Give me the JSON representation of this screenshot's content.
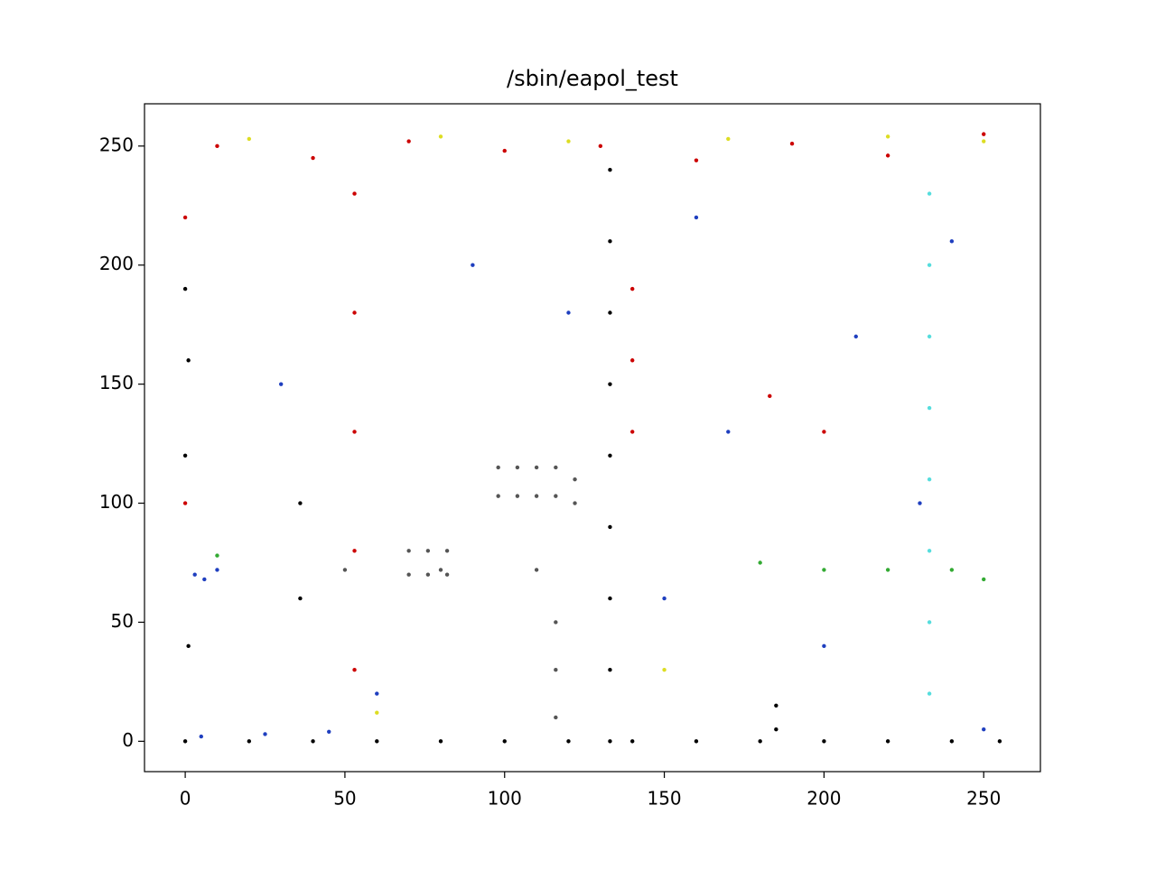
{
  "chart_data": {
    "type": "scatter",
    "title": "/sbin/eapol_test",
    "xlim": [
      -12.75,
      267.75
    ],
    "ylim": [
      -12.75,
      267.75
    ],
    "xticks": [
      0,
      50,
      100,
      150,
      200,
      250
    ],
    "yticks": [
      0,
      50,
      100,
      150,
      200,
      250
    ],
    "series": [
      {
        "color": "#000000",
        "x": [
          133,
          133,
          133,
          133,
          133,
          133,
          133,
          133,
          133,
          0,
          20,
          40,
          60,
          80,
          100,
          120,
          140,
          160,
          180,
          200,
          220,
          240,
          255,
          185,
          185,
          0,
          0,
          36,
          36,
          1,
          1
        ],
        "values": [
          0,
          30,
          60,
          90,
          120,
          150,
          180,
          210,
          240,
          0,
          0,
          0,
          0,
          0,
          0,
          0,
          0,
          0,
          0,
          0,
          0,
          0,
          0,
          5,
          15,
          190,
          120,
          100,
          60,
          40,
          160
        ]
      },
      {
        "color": "#555555",
        "x": [
          98,
          104,
          110,
          116,
          122,
          98,
          104,
          110,
          116,
          122,
          70,
          76,
          82,
          70,
          76,
          82,
          116,
          116,
          116,
          50,
          80,
          110
        ],
        "values": [
          115,
          115,
          115,
          115,
          110,
          103,
          103,
          103,
          103,
          100,
          80,
          80,
          80,
          70,
          70,
          70,
          50,
          30,
          10,
          72,
          72,
          72
        ]
      },
      {
        "color": "#cc0000",
        "x": [
          10,
          40,
          70,
          100,
          130,
          160,
          190,
          220,
          250,
          53,
          53,
          53,
          53,
          53,
          140,
          140,
          140,
          0,
          0,
          183,
          200
        ],
        "values": [
          250,
          245,
          252,
          248,
          250,
          244,
          251,
          246,
          255,
          230,
          180,
          130,
          80,
          30,
          190,
          160,
          130,
          220,
          100,
          145,
          130
        ]
      },
      {
        "color": "#1f3fbf",
        "x": [
          3,
          6,
          10,
          150,
          170,
          210,
          240,
          60,
          90,
          30,
          200,
          230,
          250,
          160,
          120,
          5,
          25,
          45
        ],
        "values": [
          70,
          68,
          72,
          60,
          130,
          170,
          210,
          20,
          200,
          150,
          40,
          100,
          5,
          220,
          180,
          2,
          3,
          4
        ]
      },
      {
        "color": "#55dddd",
        "x": [
          233,
          233,
          233,
          233,
          233,
          233,
          233,
          233
        ],
        "values": [
          20,
          50,
          80,
          110,
          140,
          170,
          200,
          230
        ]
      },
      {
        "color": "#dddd22",
        "x": [
          20,
          80,
          120,
          170,
          220,
          250,
          60,
          150
        ],
        "values": [
          253,
          254,
          252,
          253,
          254,
          252,
          12,
          30
        ]
      },
      {
        "color": "#33aa33",
        "x": [
          200,
          220,
          240,
          250,
          10,
          180
        ],
        "values": [
          72,
          72,
          72,
          68,
          78,
          75
        ]
      }
    ]
  }
}
